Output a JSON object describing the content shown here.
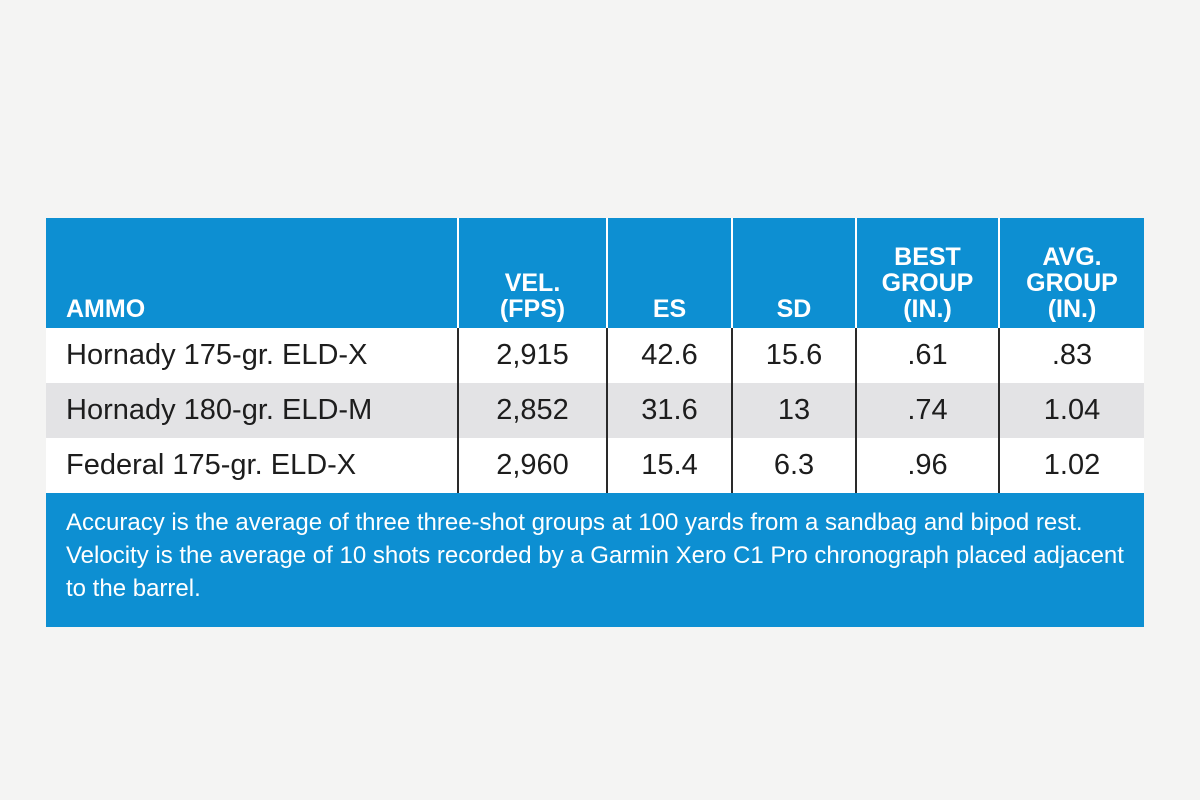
{
  "chart_data": {
    "type": "table",
    "columns": [
      [
        "AMMO"
      ],
      [
        "VEL.",
        "(FPS)"
      ],
      [
        "ES"
      ],
      [
        "SD"
      ],
      [
        "BEST",
        "GROUP",
        "(IN.)"
      ],
      [
        "AVG.",
        "GROUP",
        "(IN.)"
      ]
    ],
    "rows": [
      [
        "Hornady 175-gr. ELD-X",
        "2,915",
        "42.6",
        "15.6",
        ".61",
        ".83"
      ],
      [
        "Hornady 180-gr. ELD-M",
        "2,852",
        "31.6",
        "13",
        ".74",
        "1.04"
      ],
      [
        "Federal 175-gr. ELD-X",
        "2,960",
        "15.4",
        "6.3",
        ".96",
        "1.02"
      ]
    ],
    "footnote": "Accuracy is the average of three three-shot groups at 100 yards from a sandbag and bipod rest. Velocity is the average of 10 shots recorded by a Garmin Xero C1 Pro chronograph placed adjacent to the barrel.",
    "colors": {
      "header_bg": "#0d8fd2",
      "shaded_row": "#e3e3e5",
      "page_bg": "#f4f4f3"
    }
  }
}
